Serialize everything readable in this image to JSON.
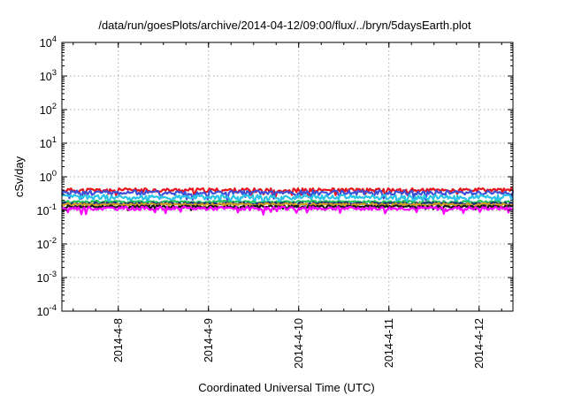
{
  "chart_data": {
    "type": "line",
    "title": "/data/run/goesPlots/archive/2014-04-12/09:00/flux/../bryn/5daysEarth.plot",
    "xlabel": "Coordinated Universal Time (UTC)",
    "ylabel": "cSv/day",
    "yscale": "log",
    "ylim": [
      0.0001,
      10000
    ],
    "xlim": [
      "2014-04-07 09:00",
      "2014-04-12 09:00"
    ],
    "grid": true,
    "yticks": [
      {
        "base": "10",
        "exp": "-4"
      },
      {
        "base": "10",
        "exp": "-3"
      },
      {
        "base": "10",
        "exp": "-2"
      },
      {
        "base": "10",
        "exp": "-1"
      },
      {
        "base": "10",
        "exp": "0"
      },
      {
        "base": "10",
        "exp": "1"
      },
      {
        "base": "10",
        "exp": "2"
      },
      {
        "base": "10",
        "exp": "3"
      },
      {
        "base": "10",
        "exp": "4"
      }
    ],
    "xticks": [
      "2014-4-8",
      "2014-4-9",
      "2014-4-10",
      "2014-4-11",
      "2014-4-12"
    ],
    "series": [
      {
        "color": "#e8131a",
        "level": 0.4,
        "jitter": 0.14,
        "seed": 11
      },
      {
        "color": "#3d4fd6",
        "level": 0.34,
        "jitter": 0.16,
        "seed": 23
      },
      {
        "color": "#29c3e8",
        "level": 0.25,
        "jitter": 0.16,
        "seed": 37
      },
      {
        "color": "#20c060",
        "level": 0.18,
        "jitter": 0.08,
        "seed": 41
      },
      {
        "color": "#1f2a7a",
        "level": 0.16,
        "jitter": 0.08,
        "seed": 53
      },
      {
        "color": "#d4a020",
        "level": 0.15,
        "jitter": 0.08,
        "seed": 61
      },
      {
        "color": "#1a1a1a",
        "level": 0.13,
        "jitter": 0.08,
        "seed": 71
      },
      {
        "color": "#ff00ff",
        "level": 0.115,
        "jitter": 0.12,
        "seed": 83
      }
    ]
  }
}
